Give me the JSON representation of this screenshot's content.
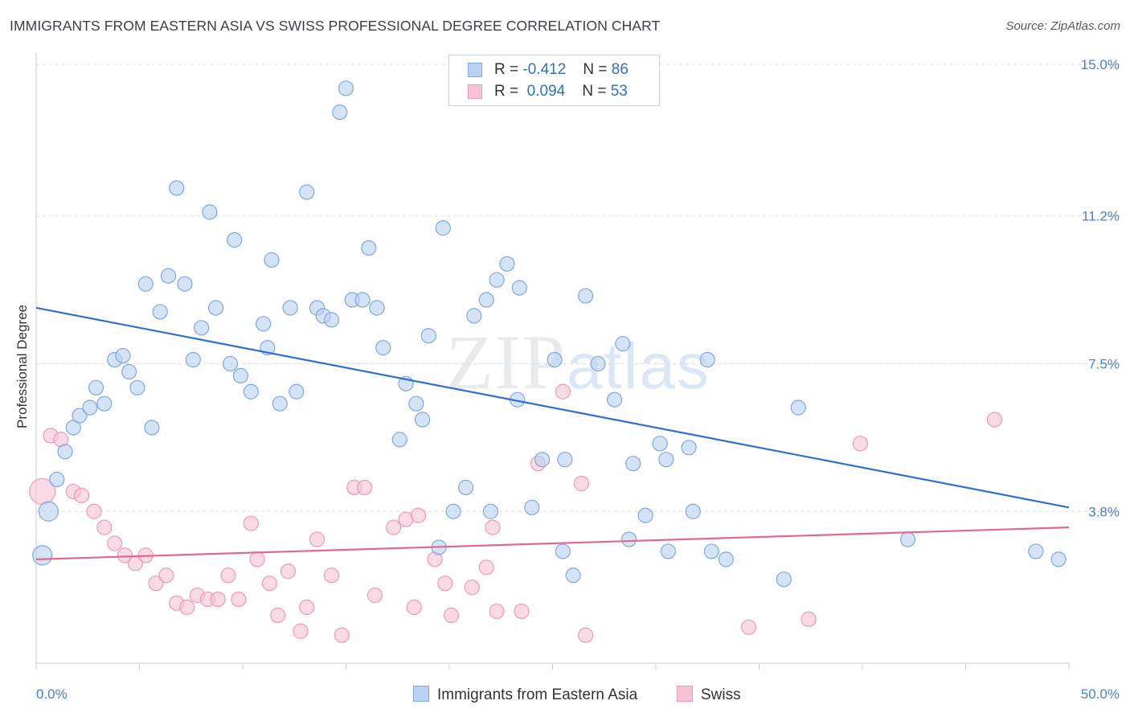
{
  "title": "IMMIGRANTS FROM EASTERN ASIA VS SWISS PROFESSIONAL DEGREE CORRELATION CHART",
  "source": "Source: ZipAtlas.com",
  "watermark": {
    "zip": "ZIP",
    "atlas": "atlas"
  },
  "legend": {
    "r_label": "R =",
    "n_label": "N =",
    "rows": [
      {
        "r": "-0.412",
        "n": "86"
      },
      {
        "r": "0.094",
        "n": "53"
      }
    ]
  },
  "chart_data": {
    "type": "scatter",
    "xlabel": "",
    "ylabel": "Professional Degree",
    "xlim": [
      0,
      50
    ],
    "ylim": [
      0,
      15.5
    ],
    "x_ticks": [
      "0.0%",
      "50.0%"
    ],
    "y_ticks": [
      {
        "value": 3.8,
        "label": "3.8%"
      },
      {
        "value": 7.5,
        "label": "7.5%"
      },
      {
        "value": 11.2,
        "label": "11.2%"
      },
      {
        "value": 15.0,
        "label": "15.0%"
      }
    ],
    "grid": true,
    "legend_position": "bottom",
    "series": [
      {
        "name": "Immigrants from Eastern Asia",
        "color": "#7fa8e0",
        "fill": "#b9d1f2",
        "trend": {
          "x": [
            0,
            50
          ],
          "y": [
            8.9,
            3.9
          ],
          "color": "#2f6fd0"
        },
        "points": [
          [
            0.3,
            2.7,
            12
          ],
          [
            0.6,
            3.8,
            12
          ],
          [
            1.0,
            4.6,
            9
          ],
          [
            1.4,
            5.3,
            9
          ],
          [
            1.8,
            5.9,
            9
          ],
          [
            2.1,
            6.2,
            9
          ],
          [
            2.6,
            6.4,
            9
          ],
          [
            2.9,
            6.9,
            9
          ],
          [
            3.3,
            6.5,
            9
          ],
          [
            3.8,
            7.6,
            9
          ],
          [
            4.2,
            7.7,
            9
          ],
          [
            4.5,
            7.3,
            9
          ],
          [
            4.9,
            6.9,
            9
          ],
          [
            5.3,
            9.5,
            9
          ],
          [
            5.6,
            5.9,
            9
          ],
          [
            6.0,
            8.8,
            9
          ],
          [
            6.4,
            9.7,
            9
          ],
          [
            6.8,
            11.9,
            9
          ],
          [
            7.2,
            9.5,
            9
          ],
          [
            7.6,
            7.6,
            9
          ],
          [
            8.0,
            8.4,
            9
          ],
          [
            8.4,
            11.3,
            9
          ],
          [
            8.7,
            8.9,
            9
          ],
          [
            9.4,
            7.5,
            9
          ],
          [
            9.6,
            10.6,
            9
          ],
          [
            9.9,
            7.2,
            9
          ],
          [
            10.4,
            6.8,
            9
          ],
          [
            11.0,
            8.5,
            9
          ],
          [
            11.2,
            7.9,
            9
          ],
          [
            11.4,
            10.1,
            9
          ],
          [
            11.8,
            6.5,
            9
          ],
          [
            12.3,
            8.9,
            9
          ],
          [
            12.6,
            6.8,
            9
          ],
          [
            13.1,
            11.8,
            9
          ],
          [
            13.6,
            8.9,
            9
          ],
          [
            13.9,
            8.7,
            9
          ],
          [
            14.3,
            8.6,
            9
          ],
          [
            14.7,
            13.8,
            9
          ],
          [
            15.0,
            14.4,
            9
          ],
          [
            15.3,
            9.1,
            9
          ],
          [
            15.8,
            9.1,
            9
          ],
          [
            16.1,
            10.4,
            9
          ],
          [
            16.5,
            8.9,
            9
          ],
          [
            16.8,
            7.9,
            9
          ],
          [
            17.6,
            5.6,
            9
          ],
          [
            17.9,
            7.0,
            9
          ],
          [
            18.4,
            6.5,
            9
          ],
          [
            18.7,
            6.1,
            9
          ],
          [
            19.0,
            8.2,
            9
          ],
          [
            19.5,
            2.9,
            9
          ],
          [
            19.7,
            10.9,
            9
          ],
          [
            20.2,
            3.8,
            9
          ],
          [
            20.8,
            4.4,
            9
          ],
          [
            21.2,
            8.7,
            9
          ],
          [
            21.8,
            9.1,
            9
          ],
          [
            22.0,
            3.8,
            9
          ],
          [
            22.3,
            9.6,
            9
          ],
          [
            22.8,
            10.0,
            9
          ],
          [
            23.3,
            6.6,
            9
          ],
          [
            23.4,
            9.4,
            9
          ],
          [
            24.0,
            3.9,
            9
          ],
          [
            24.5,
            5.1,
            9
          ],
          [
            25.1,
            7.6,
            9
          ],
          [
            25.5,
            2.8,
            9
          ],
          [
            25.6,
            5.1,
            9
          ],
          [
            26.0,
            2.2,
            9
          ],
          [
            26.6,
            9.2,
            9
          ],
          [
            27.2,
            7.5,
            9
          ],
          [
            28.0,
            6.6,
            9
          ],
          [
            28.4,
            8.0,
            9
          ],
          [
            28.7,
            3.1,
            9
          ],
          [
            28.9,
            5.0,
            9
          ],
          [
            29.5,
            3.7,
            9
          ],
          [
            30.2,
            5.5,
            9
          ],
          [
            30.5,
            5.1,
            9
          ],
          [
            30.6,
            2.8,
            9
          ],
          [
            31.6,
            5.4,
            9
          ],
          [
            31.8,
            3.8,
            9
          ],
          [
            32.5,
            7.6,
            9
          ],
          [
            32.7,
            2.8,
            9
          ],
          [
            33.4,
            2.6,
            9
          ],
          [
            36.2,
            2.1,
            9
          ],
          [
            36.9,
            6.4,
            9
          ],
          [
            42.2,
            3.1,
            9
          ],
          [
            48.4,
            2.8,
            9
          ],
          [
            49.5,
            2.6,
            9
          ]
        ]
      },
      {
        "name": "Swiss",
        "color": "#ec9ab5",
        "fill": "#f7c3d3",
        "trend": {
          "x": [
            0,
            50
          ],
          "y": [
            2.6,
            3.4
          ],
          "color": "#e06890"
        },
        "points": [
          [
            0.3,
            4.3,
            16
          ],
          [
            0.7,
            5.7,
            9
          ],
          [
            1.2,
            5.6,
            9
          ],
          [
            1.8,
            4.3,
            9
          ],
          [
            2.2,
            4.2,
            9
          ],
          [
            2.8,
            3.8,
            9
          ],
          [
            3.3,
            3.4,
            9
          ],
          [
            3.8,
            3.0,
            9
          ],
          [
            4.3,
            2.7,
            9
          ],
          [
            4.8,
            2.5,
            9
          ],
          [
            5.3,
            2.7,
            9
          ],
          [
            5.8,
            2.0,
            9
          ],
          [
            6.3,
            2.2,
            9
          ],
          [
            6.8,
            1.5,
            9
          ],
          [
            7.3,
            1.4,
            9
          ],
          [
            7.8,
            1.7,
            9
          ],
          [
            8.3,
            1.6,
            9
          ],
          [
            8.8,
            1.6,
            9
          ],
          [
            9.3,
            2.2,
            9
          ],
          [
            9.8,
            1.6,
            9
          ],
          [
            10.4,
            3.5,
            9
          ],
          [
            10.7,
            2.6,
            9
          ],
          [
            11.3,
            2.0,
            9
          ],
          [
            11.7,
            1.2,
            9
          ],
          [
            12.2,
            2.3,
            9
          ],
          [
            12.8,
            0.8,
            9
          ],
          [
            13.1,
            1.4,
            9
          ],
          [
            13.6,
            3.1,
            9
          ],
          [
            14.3,
            2.2,
            9
          ],
          [
            14.8,
            0.7,
            9
          ],
          [
            15.4,
            4.4,
            9
          ],
          [
            15.9,
            4.4,
            9
          ],
          [
            16.4,
            1.7,
            9
          ],
          [
            17.3,
            3.4,
            9
          ],
          [
            17.9,
            3.6,
            9
          ],
          [
            18.3,
            1.4,
            9
          ],
          [
            19.3,
            2.6,
            9
          ],
          [
            19.8,
            2.0,
            9
          ],
          [
            20.1,
            1.2,
            9
          ],
          [
            21.1,
            1.9,
            9
          ],
          [
            21.8,
            2.4,
            9
          ],
          [
            22.1,
            3.4,
            9
          ],
          [
            22.3,
            1.3,
            9
          ],
          [
            23.5,
            1.3,
            9
          ],
          [
            24.3,
            5.0,
            9
          ],
          [
            25.5,
            6.8,
            9
          ],
          [
            26.4,
            4.5,
            9
          ],
          [
            26.6,
            0.7,
            9
          ],
          [
            34.5,
            0.9,
            9
          ],
          [
            37.4,
            1.1,
            9
          ],
          [
            39.9,
            5.5,
            9
          ],
          [
            46.4,
            6.1,
            9
          ],
          [
            18.5,
            3.7,
            9
          ]
        ]
      }
    ]
  }
}
